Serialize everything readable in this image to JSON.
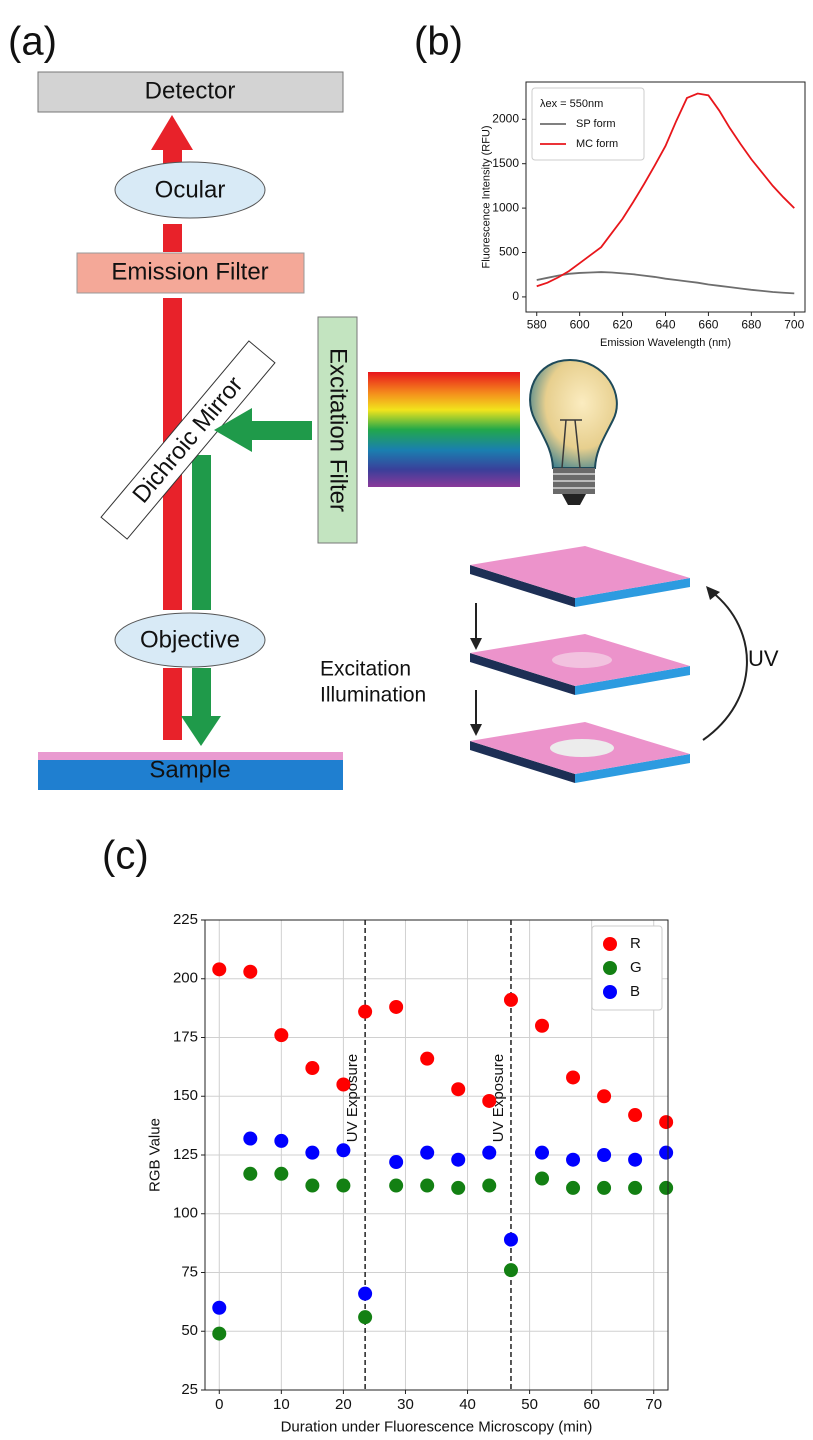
{
  "diagram": {
    "panel_labels": [
      "(a)",
      "(b)",
      "(c)"
    ],
    "detector": "Detector",
    "ocular": "Ocular",
    "emission_filter": "Emission Filter",
    "dichroic_mirror": "Dichroic Mirror",
    "excitation_filter": "Excitation Filter",
    "objective": "Objective",
    "sample": "Sample",
    "illumination_label": [
      "Excitation",
      "Illumination"
    ],
    "uv_label": "UV"
  },
  "chart_data": [
    {
      "type": "line",
      "xlabel": "Emission Wavelength (nm)",
      "ylabel": "Fluorescence Intensity (RFU)",
      "legend_title": "λex = 550nm",
      "legend": "upper left",
      "x": [
        580,
        585,
        590,
        595,
        600,
        605,
        610,
        615,
        620,
        625,
        630,
        635,
        640,
        645,
        650,
        655,
        660,
        665,
        670,
        675,
        680,
        685,
        690,
        695,
        700
      ],
      "series": [
        {
          "name": "SP form",
          "color": "#6e6e6e",
          "values": [
            190,
            215,
            240,
            260,
            270,
            275,
            280,
            275,
            265,
            255,
            240,
            225,
            205,
            190,
            175,
            160,
            140,
            125,
            110,
            95,
            80,
            68,
            55,
            47,
            40
          ]
        },
        {
          "name": "MC form",
          "color": "#e8161b",
          "values": [
            120,
            160,
            220,
            290,
            380,
            470,
            560,
            720,
            880,
            1070,
            1270,
            1480,
            1700,
            1980,
            2240,
            2290,
            2270,
            2100,
            1900,
            1720,
            1550,
            1400,
            1250,
            1120,
            1000
          ]
        }
      ],
      "xlim": [
        575,
        705
      ],
      "xticks": [
        580,
        600,
        620,
        640,
        660,
        680,
        700
      ],
      "ylim": [
        -170,
        2420
      ],
      "yticks": [
        0,
        500,
        1000,
        1500,
        2000
      ],
      "grid": false
    },
    {
      "type": "scatter",
      "xlabel": "Duration under Fluorescence Microscopy (min)",
      "ylabel": "RGB Value",
      "legend": "upper right",
      "x": [
        0,
        5,
        10,
        15,
        20,
        23.5,
        28.5,
        33.5,
        38.5,
        43.5,
        47,
        52,
        57,
        62,
        67,
        72
      ],
      "series": [
        {
          "name": "R",
          "color": "#ff0000",
          "values": [
            204,
            203,
            176,
            162,
            155,
            186,
            188,
            166,
            153,
            148,
            191,
            180,
            158,
            150,
            142,
            139
          ]
        },
        {
          "name": "G",
          "color": "#138013",
          "values": [
            49,
            117,
            117,
            112,
            112,
            56,
            112,
            112,
            111,
            112,
            76,
            115,
            111,
            111,
            111,
            111
          ]
        },
        {
          "name": "B",
          "color": "#0000ff",
          "values": [
            60,
            132,
            131,
            126,
            127,
            66,
            122,
            126,
            123,
            126,
            89,
            126,
            123,
            125,
            123,
            126
          ]
        }
      ],
      "vlines": [
        23.5,
        47
      ],
      "annotations": [
        "UV Exposure",
        "UV Exposure"
      ],
      "xlim": [
        -2.3,
        72.3
      ],
      "xticks": [
        0,
        10,
        20,
        30,
        40,
        50,
        60,
        70
      ],
      "ylim": [
        25,
        225
      ],
      "yticks": [
        25,
        50,
        75,
        100,
        125,
        150,
        175,
        200,
        225
      ],
      "grid": true
    }
  ]
}
